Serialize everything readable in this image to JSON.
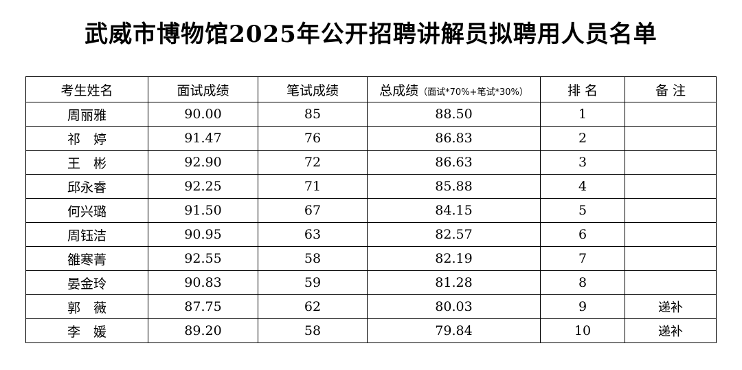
{
  "title": "武威市博物馆2025年公开招聘讲解员拟聘用人员名单",
  "table": {
    "headers": {
      "name": "考生姓名",
      "interview": "面试成绩",
      "written": "笔试成绩",
      "total": "总成绩",
      "total_note": "（面试*70%+笔试*30%）",
      "rank": "排 名",
      "remark": "备 注"
    },
    "rows": [
      {
        "name": "周丽雅",
        "interview": "90.00",
        "written": "85",
        "total": "88.50",
        "rank": "1",
        "remark": ""
      },
      {
        "name": "祁　婷",
        "interview": "91.47",
        "written": "76",
        "total": "86.83",
        "rank": "2",
        "remark": ""
      },
      {
        "name": "王　彬",
        "interview": "92.90",
        "written": "72",
        "total": "86.63",
        "rank": "3",
        "remark": ""
      },
      {
        "name": "邱永睿",
        "interview": "92.25",
        "written": "71",
        "total": "85.88",
        "rank": "4",
        "remark": ""
      },
      {
        "name": "何兴璐",
        "interview": "91.50",
        "written": "67",
        "total": "84.15",
        "rank": "5",
        "remark": ""
      },
      {
        "name": "周钰洁",
        "interview": "90.95",
        "written": "63",
        "total": "82.57",
        "rank": "6",
        "remark": ""
      },
      {
        "name": "雒寒菁",
        "interview": "92.55",
        "written": "58",
        "total": "82.19",
        "rank": "7",
        "remark": ""
      },
      {
        "name": "晏金玲",
        "interview": "90.83",
        "written": "59",
        "total": "81.28",
        "rank": "8",
        "remark": ""
      },
      {
        "name": "郭　薇",
        "interview": "87.75",
        "written": "62",
        "total": "80.03",
        "rank": "9",
        "remark": "递补"
      },
      {
        "name": "李　媛",
        "interview": "89.20",
        "written": "58",
        "total": "79.84",
        "rank": "10",
        "remark": "递补"
      }
    ]
  }
}
